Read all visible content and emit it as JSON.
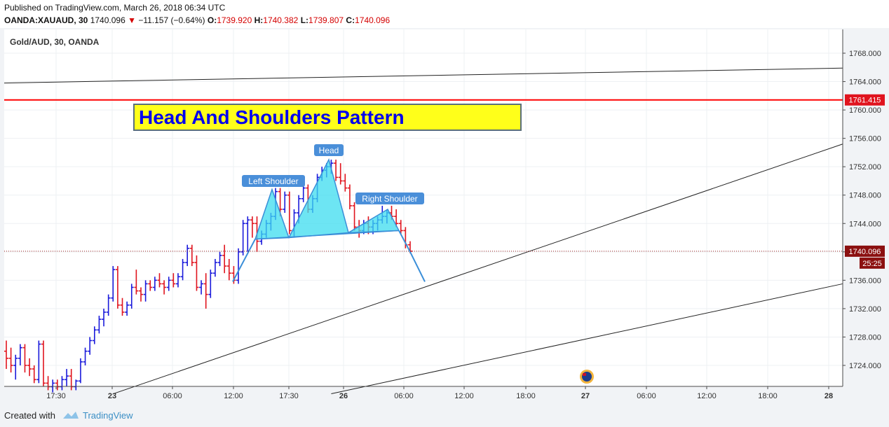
{
  "header": {
    "published": "Published on TradingView.com, March 26, 2018 06:34 UTC",
    "symbol": "OANDA:XAUAUD, 30",
    "last": "1740.096",
    "change": "−11.157 (−0.64%)",
    "o_label": "O:",
    "o": "1739.920",
    "h_label": "H:",
    "h": "1740.382",
    "l_label": "L:",
    "l": "1739.807",
    "c_label": "C:",
    "c": "1740.096"
  },
  "legend_label": "Gold/AUD, 30, OANDA",
  "title_banner": "Head And Shoulders Pattern",
  "colors": {
    "up": "#1a1adb",
    "down": "#e0141e",
    "resistance": "#ff0000",
    "pattern_fill": "#3cdcef",
    "pattern_line": "#3a8ed8",
    "banner_bg": "#ffff1a",
    "banner_text": "#0000ee",
    "label_bg": "#4a8fd9"
  },
  "chart_data": {
    "type": "candlestick",
    "title": "Head And Shoulders Pattern",
    "symbol": "Gold/AUD, 30, OANDA",
    "y_range": [
      1720,
      1773
    ],
    "y_ticks": [
      1724,
      1728,
      1732,
      1736,
      1740,
      1744,
      1748,
      1752,
      1756,
      1760,
      1764,
      1768
    ],
    "y_tick_labels": [
      "1724.000",
      "1728.000",
      "1732.000",
      "1736.000",
      "1740.000",
      "1744.000",
      "1748.000",
      "1752.000",
      "1756.000",
      "1760.000",
      "1764.000",
      "1768.000"
    ],
    "x_ticks": [
      "17:30",
      "23",
      "06:00",
      "12:00",
      "17:30",
      "26",
      "06:00",
      "12:00",
      "18:00",
      "27",
      "06:00",
      "12:00",
      "18:00",
      "28"
    ],
    "x_tick_bold": [
      false,
      true,
      false,
      false,
      false,
      true,
      false,
      false,
      false,
      true,
      false,
      false,
      false,
      true
    ],
    "price_badges": [
      {
        "label": "1761.415",
        "value": 1761.415,
        "kind": "resistance"
      },
      {
        "label": "1740.096",
        "value": 1740.096,
        "kind": "last"
      },
      {
        "label": "25:25",
        "value": 1738.2,
        "kind": "countdown"
      }
    ],
    "resistance_level": 1761.415,
    "last_price": 1740.096,
    "pattern_labels": [
      "Left Shoulder",
      "Head",
      "Right Shoulder"
    ],
    "pattern_points": {
      "left_shoulder": [
        [
          1735.8,
          1741.8,
          1748.8,
          1742.0
        ]
      ],
      "head": [
        1742.0,
        1753.0,
        1742.7
      ],
      "right_shoulder": [
        1742.7,
        1746.0,
        1743.0
      ],
      "breakdown_target": 1735.8
    },
    "candles": [
      [
        1726.0,
        1727.5,
        1723.5,
        1725.0
      ],
      [
        1725.0,
        1726.5,
        1723.0,
        1724.0
      ],
      [
        1724.0,
        1725.5,
        1722.0,
        1725.0
      ],
      [
        1725.0,
        1727.0,
        1724.0,
        1726.5
      ],
      [
        1726.5,
        1727.0,
        1723.0,
        1724.0
      ],
      [
        1724.0,
        1725.0,
        1722.5,
        1723.5
      ],
      [
        1723.5,
        1724.0,
        1721.5,
        1722.0
      ],
      [
        1722.0,
        1727.5,
        1721.5,
        1727.0
      ],
      [
        1727.0,
        1727.5,
        1721.0,
        1721.5
      ],
      [
        1721.5,
        1722.5,
        1720.5,
        1721.0
      ],
      [
        1721.0,
        1722.0,
        1720.2,
        1721.5
      ],
      [
        1721.5,
        1722.0,
        1720.5,
        1721.0
      ],
      [
        1721.0,
        1722.5,
        1720.5,
        1722.0
      ],
      [
        1722.0,
        1723.5,
        1721.0,
        1722.5
      ],
      [
        1722.5,
        1723.5,
        1720.5,
        1721.0
      ],
      [
        1721.0,
        1722.0,
        1720.5,
        1721.8
      ],
      [
        1721.8,
        1725.0,
        1721.5,
        1724.5
      ],
      [
        1724.5,
        1726.5,
        1724.0,
        1726.0
      ],
      [
        1726.0,
        1728.0,
        1725.5,
        1727.5
      ],
      [
        1727.5,
        1729.5,
        1727.0,
        1729.0
      ],
      [
        1729.0,
        1731.0,
        1728.5,
        1730.5
      ],
      [
        1730.5,
        1732.0,
        1729.5,
        1731.5
      ],
      [
        1731.5,
        1734.0,
        1731.0,
        1733.5
      ],
      [
        1733.5,
        1738.0,
        1733.0,
        1737.5
      ],
      [
        1737.5,
        1738.0,
        1732.0,
        1732.5
      ],
      [
        1732.5,
        1733.5,
        1731.0,
        1731.5
      ],
      [
        1731.5,
        1733.0,
        1731.0,
        1732.5
      ],
      [
        1732.5,
        1735.5,
        1732.0,
        1735.0
      ],
      [
        1735.0,
        1737.5,
        1734.0,
        1734.5
      ],
      [
        1734.5,
        1735.0,
        1733.0,
        1734.0
      ],
      [
        1734.0,
        1736.0,
        1733.0,
        1735.5
      ],
      [
        1735.5,
        1736.0,
        1734.5,
        1735.0
      ],
      [
        1735.0,
        1736.5,
        1734.5,
        1736.0
      ],
      [
        1736.0,
        1737.0,
        1735.0,
        1735.5
      ],
      [
        1735.5,
        1736.0,
        1734.0,
        1735.0
      ],
      [
        1735.0,
        1736.5,
        1734.5,
        1736.0
      ],
      [
        1736.0,
        1737.0,
        1735.0,
        1735.5
      ],
      [
        1735.5,
        1737.0,
        1735.0,
        1736.5
      ],
      [
        1736.5,
        1739.0,
        1736.0,
        1738.5
      ],
      [
        1738.5,
        1741.0,
        1738.0,
        1740.5
      ],
      [
        1740.5,
        1741.0,
        1738.0,
        1738.5
      ],
      [
        1738.5,
        1739.5,
        1734.5,
        1735.0
      ],
      [
        1735.0,
        1736.0,
        1734.0,
        1735.5
      ],
      [
        1735.5,
        1737.0,
        1732.0,
        1734.0
      ],
      [
        1734.0,
        1737.5,
        1733.5,
        1737.0
      ],
      [
        1737.0,
        1739.0,
        1736.5,
        1738.5
      ],
      [
        1738.5,
        1740.0,
        1738.0,
        1739.5
      ],
      [
        1739.5,
        1741.0,
        1737.0,
        1738.0
      ],
      [
        1738.0,
        1739.0,
        1736.0,
        1737.0
      ],
      [
        1737.0,
        1738.0,
        1735.5,
        1736.0
      ],
      [
        1736.0,
        1740.5,
        1735.5,
        1740.0
      ],
      [
        1740.0,
        1744.5,
        1739.5,
        1744.0
      ],
      [
        1744.0,
        1745.0,
        1740.0,
        1744.5
      ],
      [
        1744.5,
        1745.0,
        1742.0,
        1744.0
      ],
      [
        1744.0,
        1745.0,
        1740.0,
        1741.5
      ],
      [
        1741.5,
        1743.0,
        1741.0,
        1742.5
      ],
      [
        1742.5,
        1744.5,
        1742.0,
        1744.0
      ],
      [
        1744.0,
        1745.5,
        1743.0,
        1745.0
      ],
      [
        1745.0,
        1749.0,
        1744.5,
        1748.5
      ],
      [
        1748.5,
        1749.0,
        1745.0,
        1746.0
      ],
      [
        1746.0,
        1748.5,
        1745.5,
        1748.0
      ],
      [
        1748.0,
        1748.5,
        1742.5,
        1743.0
      ],
      [
        1743.0,
        1746.0,
        1742.0,
        1745.5
      ],
      [
        1745.5,
        1748.0,
        1744.0,
        1747.5
      ],
      [
        1747.5,
        1749.5,
        1747.0,
        1749.0
      ],
      [
        1749.0,
        1749.5,
        1745.5,
        1746.0
      ],
      [
        1746.0,
        1748.0,
        1745.5,
        1747.5
      ],
      [
        1747.5,
        1751.0,
        1747.0,
        1750.5
      ],
      [
        1750.5,
        1752.0,
        1750.0,
        1751.5
      ],
      [
        1751.5,
        1752.5,
        1750.5,
        1752.0
      ],
      [
        1752.0,
        1753.0,
        1751.0,
        1752.5
      ],
      [
        1752.5,
        1753.0,
        1750.0,
        1750.5
      ],
      [
        1750.5,
        1752.5,
        1749.5,
        1750.0
      ],
      [
        1750.0,
        1751.0,
        1748.5,
        1749.0
      ],
      [
        1749.0,
        1749.5,
        1746.0,
        1746.5
      ],
      [
        1746.5,
        1747.0,
        1743.0,
        1743.5
      ],
      [
        1743.5,
        1744.5,
        1742.0,
        1743.0
      ],
      [
        1743.0,
        1744.5,
        1742.5,
        1744.0
      ],
      [
        1744.0,
        1745.0,
        1742.5,
        1743.5
      ],
      [
        1743.5,
        1744.5,
        1742.5,
        1744.0
      ],
      [
        1744.0,
        1745.0,
        1743.0,
        1744.5
      ],
      [
        1744.5,
        1746.5,
        1744.0,
        1745.0
      ],
      [
        1745.0,
        1746.0,
        1744.0,
        1745.5
      ],
      [
        1745.5,
        1746.5,
        1744.5,
        1745.0
      ],
      [
        1745.0,
        1746.0,
        1743.5,
        1744.0
      ],
      [
        1744.0,
        1744.5,
        1742.5,
        1743.0
      ],
      [
        1743.0,
        1743.5,
        1740.5,
        1741.0
      ],
      [
        1741.0,
        1741.5,
        1739.8,
        1740.1
      ]
    ],
    "trendlines": [
      {
        "from": [
          0,
          1763.8
        ],
        "to": [
          1,
          1765.9
        ]
      },
      {
        "from": [
          0.13,
          1720.0
        ],
        "to": [
          1,
          1755.2
        ]
      },
      {
        "from": [
          0.39,
          1720.0
        ],
        "to": [
          1,
          1735.5
        ]
      }
    ]
  },
  "footer": {
    "created_with": "Created with",
    "brand": "TradingView"
  }
}
